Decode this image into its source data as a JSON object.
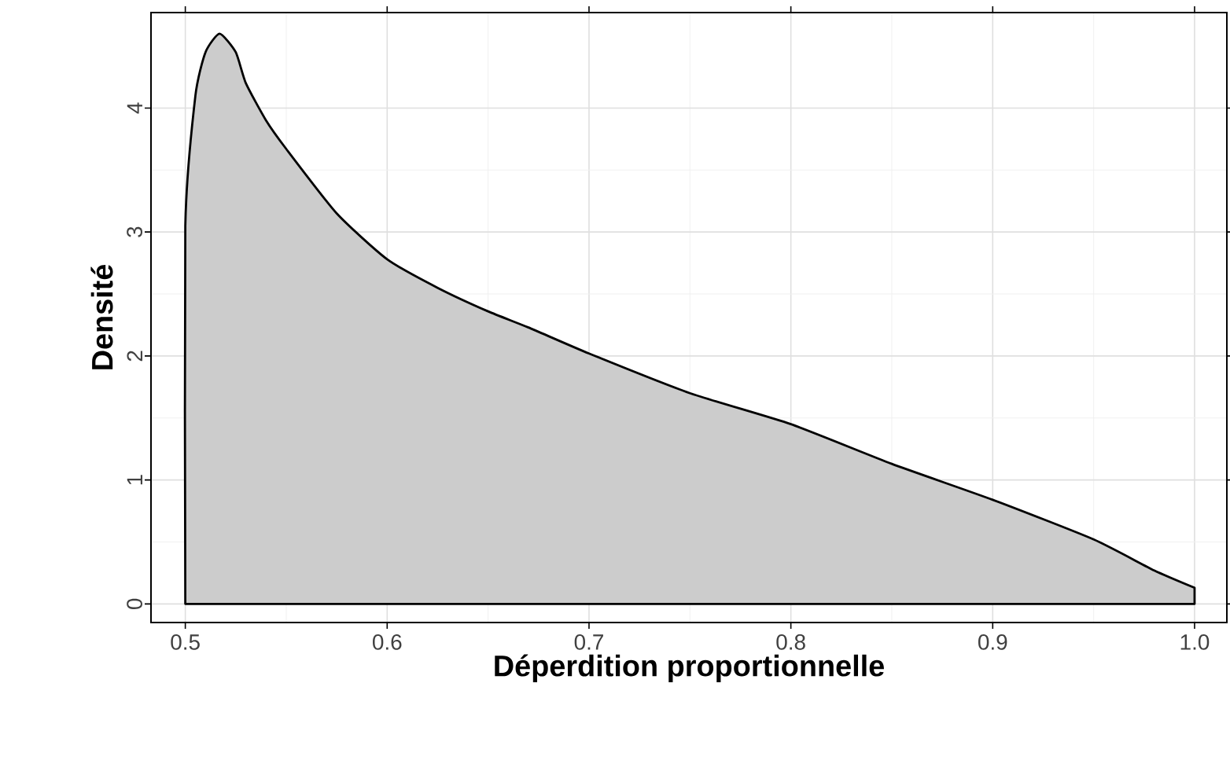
{
  "chart_data": {
    "type": "area",
    "xlabel": "Déperdition proportionnelle",
    "ylabel": "Densité",
    "x": [
      0.5,
      0.5,
      0.505,
      0.51,
      0.517,
      0.525,
      0.53,
      0.54,
      0.55,
      0.575,
      0.6,
      0.625,
      0.65,
      0.67,
      0.7,
      0.75,
      0.8,
      0.85,
      0.9,
      0.95,
      0.98,
      1.0
    ],
    "series": [
      {
        "color": "#cccccc",
        "values": [
          0,
          3.05,
          4.1,
          4.45,
          4.6,
          4.45,
          4.2,
          3.9,
          3.67,
          3.15,
          2.78,
          2.55,
          2.36,
          2.23,
          2.02,
          1.7,
          1.45,
          1.13,
          0.84,
          0.52,
          0.27,
          0.13
        ]
      }
    ],
    "xlim": [
      0.483,
      1.016
    ],
    "ylim": [
      -0.15,
      4.77
    ],
    "xticks": [
      {
        "value": 0.5,
        "label": "0.5"
      },
      {
        "value": 0.6,
        "label": "0.6"
      },
      {
        "value": 0.7,
        "label": "0.7"
      },
      {
        "value": 0.8,
        "label": "0.8"
      },
      {
        "value": 0.9,
        "label": "0.9"
      },
      {
        "value": 1.0,
        "label": "1.0"
      }
    ],
    "yticks": [
      0,
      1,
      2,
      3,
      4
    ],
    "grid": true
  }
}
